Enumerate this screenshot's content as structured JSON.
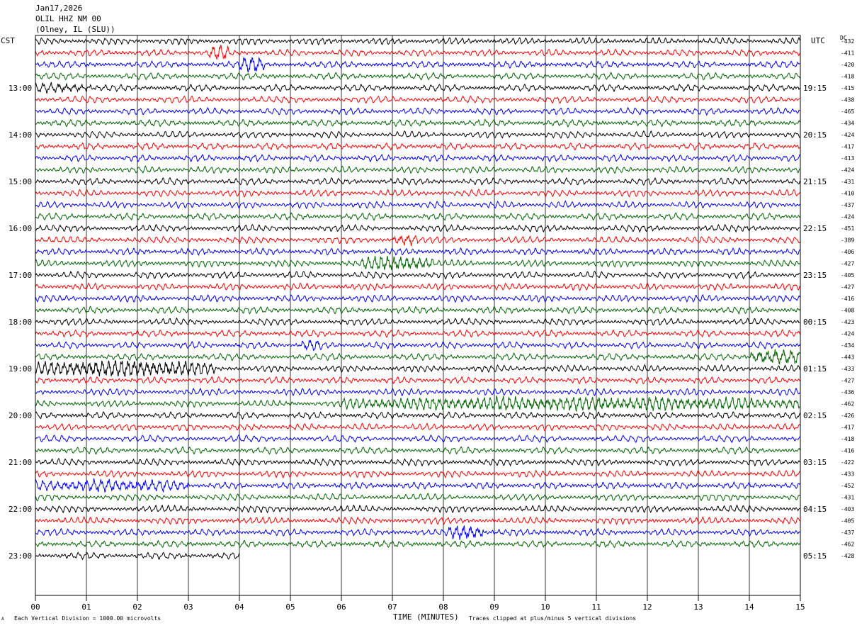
{
  "header": {
    "date": "Jan17,2026",
    "station": "OLIL HHZ NM 00",
    "location": "(Olney, IL (SLU))",
    "left_tz": "CST",
    "right_tz": "UTC",
    "dc_label": "DC"
  },
  "footer": {
    "scale_note": "Each Vertical Division = 1000.00 microvolts",
    "clip_note": "Traces clipped at plus/minus 5 vertical divisions",
    "corner_mark": "A"
  },
  "chart_data": {
    "type": "line",
    "title": "",
    "xlabel": "TIME (MINUTES)",
    "ylabel": "",
    "xlim": [
      0,
      15
    ],
    "x_ticks": [
      "00",
      "01",
      "02",
      "03",
      "04",
      "05",
      "06",
      "07",
      "08",
      "09",
      "10",
      "11",
      "12",
      "13",
      "14",
      "15"
    ],
    "trace_colors": [
      "#000000",
      "#ff0000",
      "#0000ff",
      "#006400"
    ],
    "left_hour_labels": [
      "13:00",
      "14:00",
      "15:00",
      "16:00",
      "17:00",
      "18:00",
      "19:00",
      "20:00",
      "21:00",
      "22:00",
      "23:00"
    ],
    "right_hour_labels": [
      "19:15",
      "20:15",
      "21:15",
      "22:15",
      "23:15",
      "00:15",
      "01:15",
      "02:15",
      "03:15",
      "04:15",
      "05:15"
    ],
    "dc_offsets": [
      -432,
      -411,
      -420,
      -418,
      -415,
      -438,
      -465,
      -434,
      -424,
      -417,
      -413,
      -424,
      -431,
      -410,
      -437,
      -424,
      -451,
      -389,
      -406,
      -427,
      -405,
      -427,
      -416,
      -408,
      -423,
      -424,
      -434,
      -443,
      -433,
      -427,
      -436,
      -462,
      -426,
      -417,
      -418,
      -416,
      -422,
      -433,
      -452,
      -431,
      -403,
      -405,
      -437,
      -462,
      -428
    ],
    "last_trace_end_minute": 4.0,
    "events": [
      {
        "trace": 1,
        "start": 3.4,
        "end": 3.8,
        "amp": 1.3
      },
      {
        "trace": 2,
        "start": 4.0,
        "end": 4.5,
        "amp": 1.4
      },
      {
        "trace": 4,
        "start": 0.0,
        "end": 1.1,
        "amp": 0.7
      },
      {
        "trace": 17,
        "start": 7.0,
        "end": 7.5,
        "amp": 0.9
      },
      {
        "trace": 19,
        "start": 6.4,
        "end": 7.8,
        "amp": 1.3
      },
      {
        "trace": 26,
        "start": 5.2,
        "end": 5.6,
        "amp": 0.8
      },
      {
        "trace": 27,
        "start": 14.0,
        "end": 15.0,
        "amp": 1.4
      },
      {
        "trace": 28,
        "start": 0.0,
        "end": 3.5,
        "amp": 1.5
      },
      {
        "trace": 31,
        "start": 6.0,
        "end": 15.0,
        "amp": 1.1
      },
      {
        "trace": 38,
        "start": 0.0,
        "end": 3.0,
        "amp": 0.9
      },
      {
        "trace": 42,
        "start": 8.1,
        "end": 8.8,
        "amp": 1.4
      }
    ]
  }
}
